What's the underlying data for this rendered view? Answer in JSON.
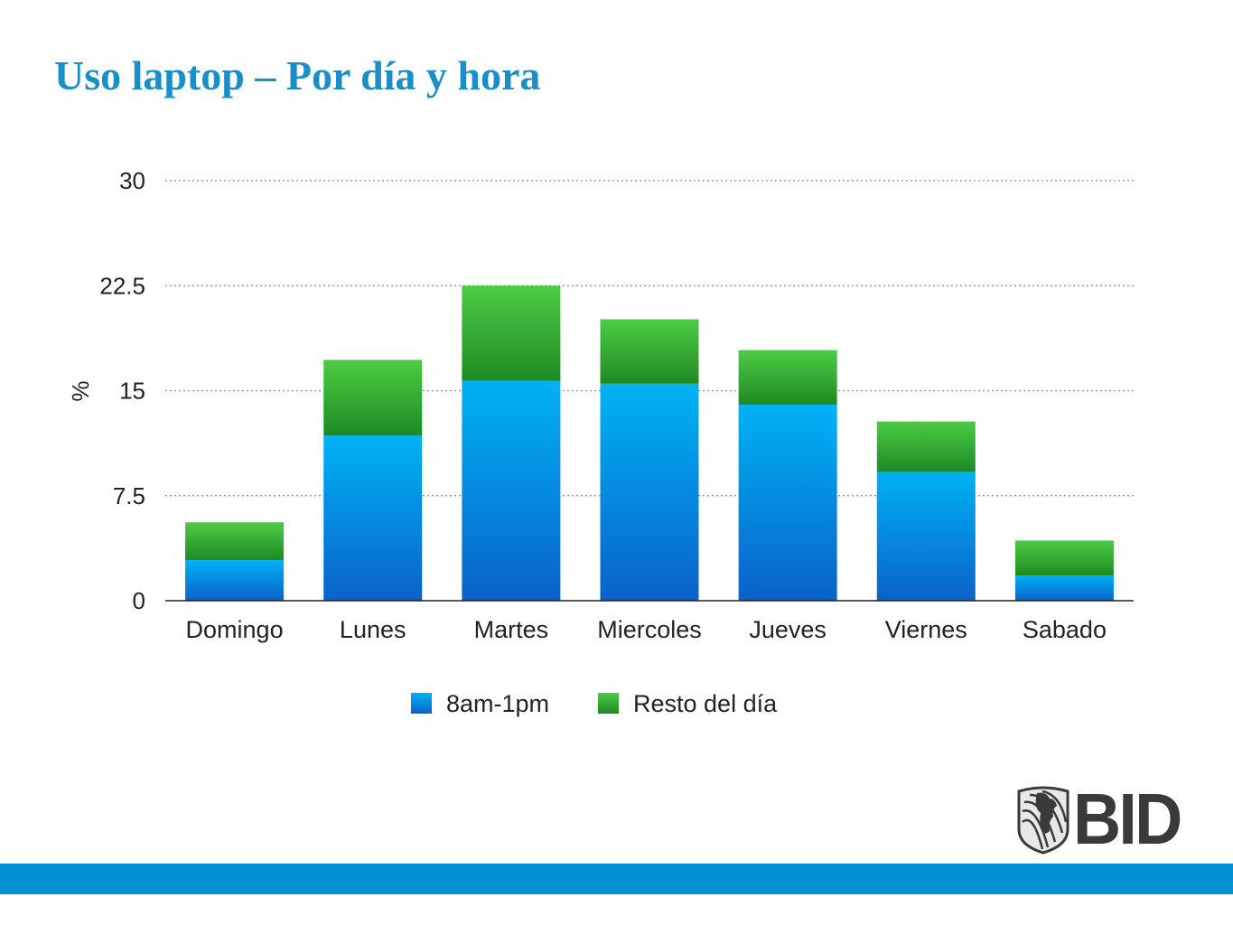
{
  "slide": {
    "title": "Uso laptop – Por día y hora",
    "logo_text": "BID",
    "footer_color": "#0092d4",
    "title_color": "#1a8fc7"
  },
  "chart_data": {
    "type": "bar",
    "stacked": true,
    "title": "",
    "xlabel": "",
    "ylabel": "%",
    "ylim": [
      0,
      30
    ],
    "yticks": [
      0,
      7.5,
      15,
      22.5,
      30
    ],
    "ytick_labels": [
      "0",
      "7.5",
      "15",
      "22.5",
      "30"
    ],
    "grid": "horizontal-dotted",
    "legend_position": "bottom",
    "categories": [
      "Domingo",
      "Lunes",
      "Martes",
      "Miercoles",
      "Jueves",
      "Viernes",
      "Sabado"
    ],
    "series": [
      {
        "name": "8am-1pm",
        "color": "#0a8ce0",
        "values": [
          2.9,
          11.8,
          15.7,
          15.5,
          14.0,
          9.2,
          1.8
        ]
      },
      {
        "name": "Resto del día",
        "color": "#2fa83a",
        "values": [
          2.7,
          5.4,
          6.8,
          4.6,
          3.9,
          3.6,
          2.5
        ]
      }
    ]
  }
}
